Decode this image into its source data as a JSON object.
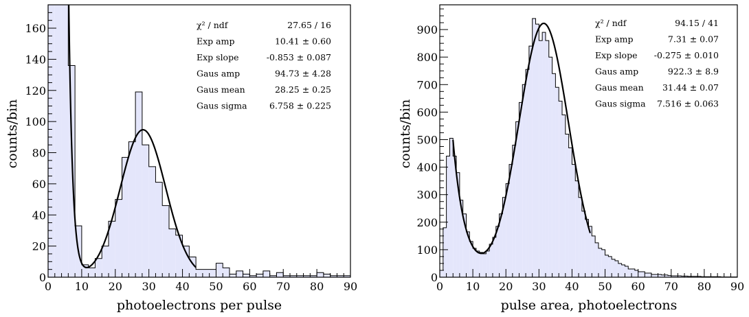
{
  "chart_data": [
    {
      "type": "histogram",
      "xlabel": "photoelectrons per pulse",
      "ylabel": "counts/bin",
      "xlim": [
        0,
        90
      ],
      "ylim": [
        0,
        175
      ],
      "xticks": [
        0,
        10,
        20,
        30,
        40,
        50,
        60,
        70,
        80,
        90
      ],
      "yticks": [
        0,
        20,
        40,
        60,
        80,
        100,
        120,
        140,
        160
      ],
      "bin_width": 2,
      "x": [
        1,
        3,
        5,
        7,
        9,
        11,
        13,
        15,
        17,
        19,
        21,
        23,
        25,
        27,
        29,
        31,
        33,
        35,
        37,
        39,
        41,
        43,
        45,
        47,
        49,
        51,
        53,
        55,
        57,
        59,
        61,
        63,
        65,
        67,
        69,
        71,
        73,
        75,
        77,
        79,
        81,
        83,
        85,
        87,
        89
      ],
      "values": [
        175,
        175,
        175,
        136,
        33,
        8,
        6,
        12,
        20,
        36,
        50,
        77,
        87,
        119,
        85,
        71,
        61,
        46,
        31,
        27,
        20,
        13,
        5,
        5,
        5,
        9,
        6,
        2,
        4,
        2,
        1,
        2,
        4,
        1,
        3,
        1,
        1,
        1,
        1,
        1,
        3,
        2,
        1,
        1,
        1
      ],
      "fit": {
        "model": "exp + gaus",
        "exp_amp": 10.41,
        "exp_slope": -0.853,
        "gaus_amp": 94.73,
        "gaus_mean": 28.25,
        "gaus_sigma": 6.758,
        "range": [
          4.5,
          44
        ]
      },
      "stats": [
        {
          "label": "χ² / ndf",
          "value": "27.65 / 16"
        },
        {
          "label": "Exp amp",
          "value": "10.41 ± 0.60"
        },
        {
          "label": "Exp slope",
          "value": "-0.853 ± 0.087"
        },
        {
          "label": "Gaus amp",
          "value": "94.73 ± 4.28"
        },
        {
          "label": "Gaus mean",
          "value": "28.25 ± 0.25"
        },
        {
          "label": "Gaus sigma",
          "value": "6.758 ± 0.225"
        }
      ],
      "colors": {
        "fill": "#e4e6fb",
        "outline": "#000000",
        "fit": "#000000"
      }
    },
    {
      "type": "histogram",
      "xlabel": "pulse area, photoelectrons",
      "ylabel": "counts/bin",
      "xlim": [
        0,
        90
      ],
      "ylim": [
        0,
        990
      ],
      "xticks": [
        0,
        10,
        20,
        30,
        40,
        50,
        60,
        70,
        80,
        90
      ],
      "yticks": [
        0,
        100,
        200,
        300,
        400,
        500,
        600,
        700,
        800,
        900
      ],
      "bin_width": 1,
      "x": [
        0.5,
        1.5,
        2.5,
        3.5,
        4.5,
        5.5,
        6.5,
        7.5,
        8.5,
        9.5,
        10.5,
        11.5,
        12.5,
        13.5,
        14.5,
        15.5,
        16.5,
        17.5,
        18.5,
        19.5,
        20.5,
        21.5,
        22.5,
        23.5,
        24.5,
        25.5,
        26.5,
        27.5,
        28.5,
        29.5,
        30.5,
        31.5,
        32.5,
        33.5,
        34.5,
        35.5,
        36.5,
        37.5,
        38.5,
        39.5,
        40.5,
        41.5,
        42.5,
        43.5,
        44.5,
        45.5,
        46.5,
        47.5,
        48.5,
        49.5,
        50.5,
        51.5,
        52.5,
        53.5,
        54.5,
        55.5,
        56.5,
        57.5,
        58.5,
        59.5,
        60.5,
        61.5,
        62.5,
        63.5,
        64.5,
        65.5,
        66.5,
        67.5,
        68.5,
        69.5,
        70.5,
        71.5,
        72.5,
        73.5,
        74.5,
        75.5,
        76.5,
        77.5,
        78.5,
        79.5,
        80.5,
        81.5,
        82.5,
        83.5,
        84.5,
        85.5,
        86.5,
        87.5,
        88.5,
        89.5
      ],
      "values": [
        25,
        180,
        440,
        505,
        440,
        380,
        280,
        230,
        165,
        130,
        105,
        95,
        90,
        85,
        95,
        120,
        145,
        185,
        230,
        290,
        340,
        410,
        480,
        565,
        635,
        700,
        755,
        840,
        940,
        920,
        860,
        890,
        860,
        800,
        740,
        690,
        640,
        590,
        520,
        470,
        410,
        350,
        290,
        240,
        210,
        185,
        150,
        125,
        105,
        100,
        80,
        75,
        65,
        60,
        50,
        45,
        40,
        30,
        30,
        25,
        20,
        20,
        15,
        15,
        10,
        10,
        10,
        8,
        8,
        6,
        5,
        5,
        5,
        4,
        4,
        3,
        3,
        3,
        3,
        2,
        2,
        2,
        2,
        2,
        2,
        1,
        1,
        1,
        1,
        1
      ],
      "fit": {
        "model": "exp + gaus",
        "exp_amp": 7.31,
        "exp_slope": -0.275,
        "gaus_amp": 922.3,
        "gaus_mean": 31.44,
        "gaus_sigma": 7.516,
        "range": [
          4,
          45.5
        ]
      },
      "stats": [
        {
          "label": "χ² / ndf",
          "value": "94.15 / 41"
        },
        {
          "label": "Exp amp",
          "value": "7.31 ± 0.07"
        },
        {
          "label": "Exp slope",
          "value": "-0.275 ± 0.010"
        },
        {
          "label": "Gaus amp",
          "value": "922.3 ± 8.9"
        },
        {
          "label": "Gaus mean",
          "value": "31.44 ± 0.07"
        },
        {
          "label": "Gaus sigma",
          "value": "7.516 ± 0.063"
        }
      ],
      "colors": {
        "fill": "#e4e6fb",
        "outline": "#000000",
        "fit": "#000000"
      }
    }
  ]
}
